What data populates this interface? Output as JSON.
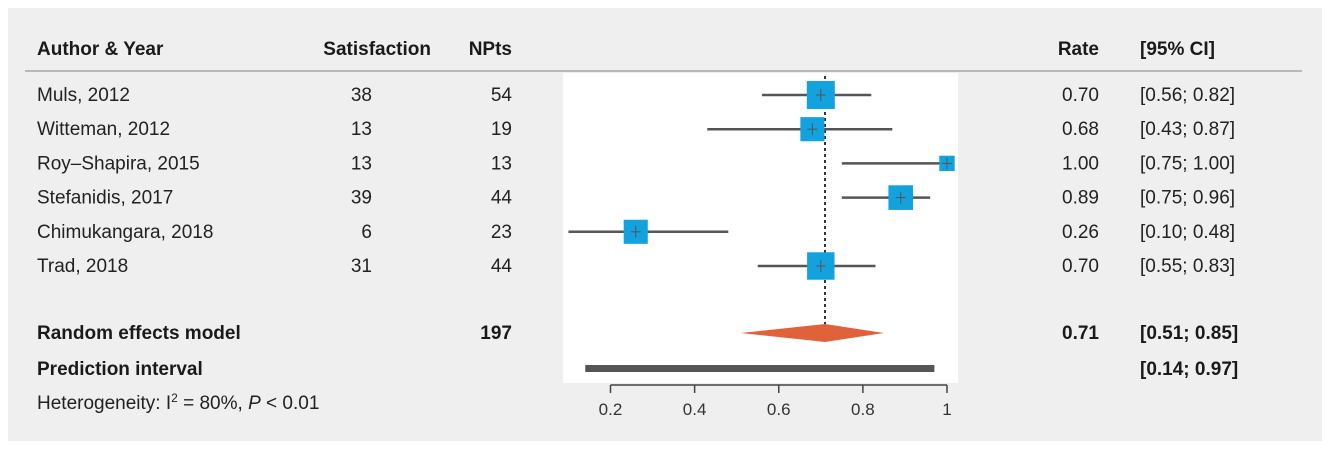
{
  "chart_data": {
    "type": "forest",
    "columns": {
      "study": "Author & Year",
      "events": "Satisfaction",
      "total": "NPts",
      "rate": "Rate",
      "ci": "[95% CI]"
    },
    "studies": [
      {
        "study": "Muls, 2012",
        "events": "38",
        "total": "54",
        "rate": "0.70",
        "ci": "[0.56; 0.82]",
        "est": 0.7,
        "lo": 0.56,
        "hi": 0.82,
        "weight": 1.0
      },
      {
        "study": "Witteman, 2012",
        "events": "13",
        "total": "19",
        "rate": "0.68",
        "ci": "[0.43; 0.87]",
        "est": 0.68,
        "lo": 0.43,
        "hi": 0.87,
        "weight": 0.86
      },
      {
        "study": "Roy–Shapira, 2015",
        "events": "13",
        "total": "13",
        "rate": "1.00",
        "ci": "[0.75; 1.00]",
        "est": 1.0,
        "lo": 0.75,
        "hi": 1.0,
        "weight": 0.55
      },
      {
        "study": "Stefanidis, 2017",
        "events": "39",
        "total": "44",
        "rate": "0.89",
        "ci": "[0.75; 0.96]",
        "est": 0.89,
        "lo": 0.75,
        "hi": 0.96,
        "weight": 0.88
      },
      {
        "study": "Chimukangara, 2018",
        "events": "6",
        "total": "23",
        "rate": "0.26",
        "ci": "[0.10; 0.48]",
        "est": 0.26,
        "lo": 0.1,
        "hi": 0.48,
        "weight": 0.86
      },
      {
        "study": "Trad, 2018",
        "events": "31",
        "total": "44",
        "rate": "0.70",
        "ci": "[0.55; 0.83]",
        "est": 0.7,
        "lo": 0.55,
        "hi": 0.83,
        "weight": 0.98
      }
    ],
    "summary": {
      "label": "Random effects model",
      "total": "197",
      "rate": "0.71",
      "ci": "[0.51; 0.85]",
      "est": 0.71,
      "lo": 0.51,
      "hi": 0.85
    },
    "prediction": {
      "label": "Prediction interval",
      "ci": "[0.14; 0.97]",
      "lo": 0.14,
      "hi": 0.97
    },
    "heterogeneity": {
      "prefix": "Heterogeneity: I",
      "sup": "2",
      "eq": " = 80%, ",
      "p": "P",
      "rest": " < 0.01"
    },
    "x_ticks": [
      {
        "value": 0.2,
        "label": "0.2"
      },
      {
        "value": 0.4,
        "label": "0.4"
      },
      {
        "value": 0.6,
        "label": "0.6"
      },
      {
        "value": 0.8,
        "label": "0.8"
      },
      {
        "value": 1.0,
        "label": "1"
      }
    ],
    "xlim": [
      0.08,
      1.03
    ],
    "reference_line": 0.71,
    "colors": {
      "square": "#13a2dd",
      "diamond": "#e0623a",
      "ci_line": "#555555",
      "prediction_bar": "#555555",
      "panel": "#ffffff",
      "frame": "#efefef"
    }
  }
}
